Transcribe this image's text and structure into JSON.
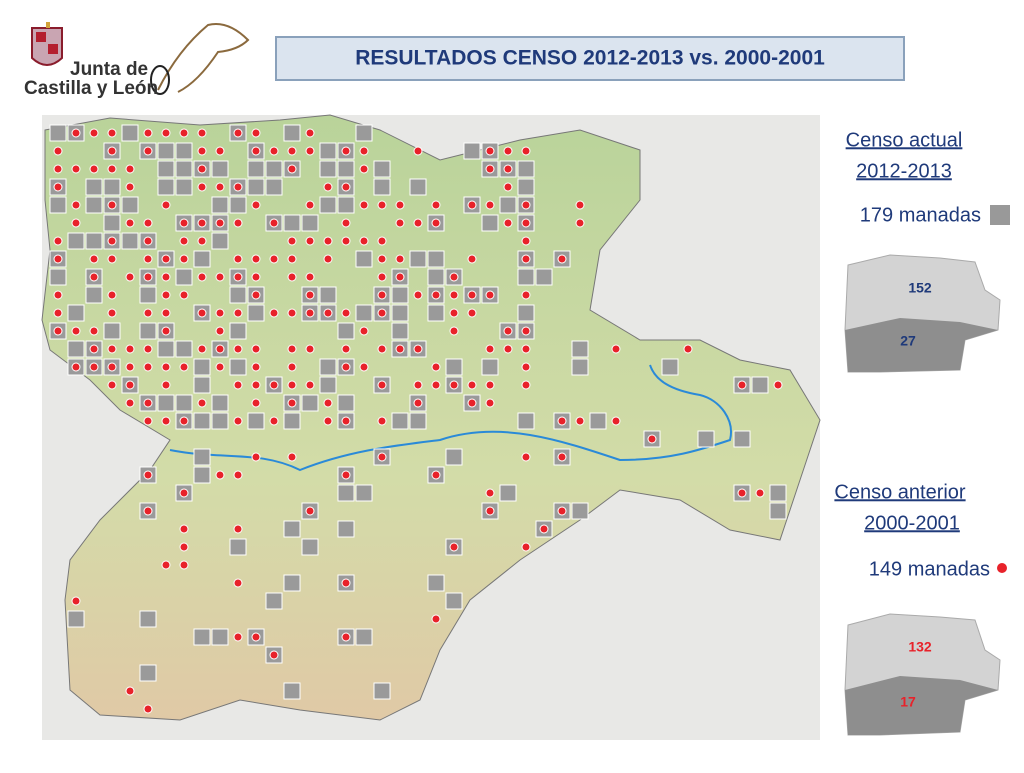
{
  "header": {
    "logo_line1": "Junta de",
    "logo_line2": "Castilla y León",
    "title": "RESULTADOS CENSO 2012-2013 vs. 2000-2001"
  },
  "legend": [
    {
      "heading": "Censo actual",
      "period": "2012-2013",
      "total": "179 manadas",
      "north": 152,
      "south": 27
    },
    {
      "heading": "Censo anterior",
      "period": "2000-2001",
      "total": "149 manadas",
      "north": 132,
      "south": 17
    }
  ]
}
